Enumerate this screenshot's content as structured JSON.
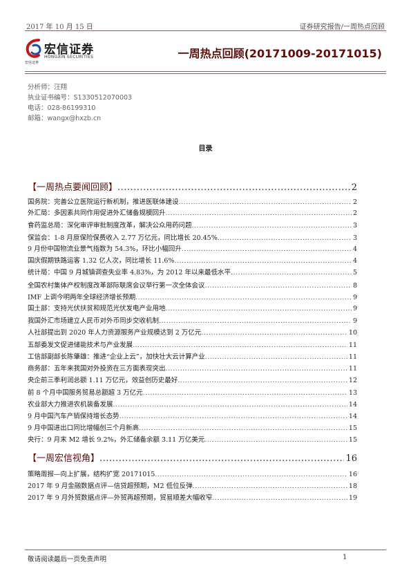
{
  "header": {
    "date": "2017 年 10 月 15 日",
    "report_type": "证券研究报告/一周热点回顾"
  },
  "logo": {
    "name_cn": "宏信证券",
    "name_en": "HONGXIN SECURITIES",
    "sub": "宏信证券"
  },
  "title": "一周热点回顾(20171009-20171015)",
  "analyst": {
    "name": "分析师：汪翔",
    "cert": "执业证书编号：S1330512070003",
    "phone": "电话：028-86199310",
    "email": "邮箱：wangx@hxzb.cn"
  },
  "toc": {
    "heading": "目录",
    "entries": [
      {
        "label": "【一周热点要闻回顾】",
        "page": "2",
        "section": true
      },
      {
        "label": "国务院：完善公立医院运行新机制，推进医联体建设",
        "page": "2"
      },
      {
        "label": "外汇局：多因素共同作用促进外汇储备规模回升",
        "page": "2"
      },
      {
        "label": "食药监总局：深化审评审批制度改革，解决公众用药问题",
        "page": "3"
      },
      {
        "label": "保监会：1-8 月原保险保费收入 2.77 万亿元，同比增长 20.45%",
        "page": "3"
      },
      {
        "label": "9 月份中国物流业景气指数为 54.3%，环比小幅回升",
        "page": "4"
      },
      {
        "label": "国庆假期铁路运客 1.32 亿人次，同比增长 11.6%",
        "page": "4"
      },
      {
        "label": "统计局：中国 9 月城镇调查失业率 4.83%，为 2012 年以来最低水平",
        "page": "5"
      },
      {
        "label": "全国农村集体产权制度改革部际联席会议举行第一次全体会议",
        "page": "8"
      },
      {
        "label": "IMF 上调今明两年全球经济增长预期",
        "page": "9"
      },
      {
        "label": "国土部：支持光伏扶贫和规范光伏发电产业用地",
        "page": "9"
      },
      {
        "label": "我国外汇市场建立人民币对外币同步交收机制",
        "page": "9"
      },
      {
        "label": "人社部提出到 2020 年人力资源服务产业规模达到 2 万亿元",
        "page": "10"
      },
      {
        "label": "五部委发文促进储能技术与产业发展",
        "page": "11"
      },
      {
        "label": "工信部副部长陈肇雄：推进“企业上云”，加快壮大云计算产业",
        "page": "11"
      },
      {
        "label": "商务部：五年来我国对外投资在三方面表现突出",
        "page": "11"
      },
      {
        "label": "央企前三季利润总额 1.11 万亿元，效益创历史最好",
        "page": "12"
      },
      {
        "label": "前 8 个月中国服务贸易总额超 3 万亿元",
        "page": "13"
      },
      {
        "label": "农业部大力推进农机装备发展",
        "page": "14"
      },
      {
        "label": "9 月中国汽车产销保持增长态势",
        "page": "14"
      },
      {
        "label": "9 月中国进出口同比增幅创三个月新高",
        "page": "15"
      },
      {
        "label": "央行：9 月末 M2 增长 9.2%，外汇储备余额 3.11 万亿美元",
        "page": "15"
      },
      {
        "label": "【一周宏信视角】",
        "page": "16",
        "section": true
      },
      {
        "label": "策略周报—向上扩展，结构扩宽 20171015",
        "page": "16"
      },
      {
        "label": "2017 年 9 月金融数据点评—信贷超预期，M2 低位反弹",
        "page": "18"
      },
      {
        "label": "2017 年 9 月外贸数据点评—外贸再超预期，贸易顺差大幅收窄",
        "page": "19"
      }
    ]
  },
  "footer": {
    "disclaimer": "敬请阅读最后一页免责声明",
    "page_number": "1"
  },
  "colors": {
    "title": "#5b0f0f",
    "rule": "#7a6a63",
    "logo_red": "#c8161d",
    "logo_blue": "#1f4e9c"
  }
}
